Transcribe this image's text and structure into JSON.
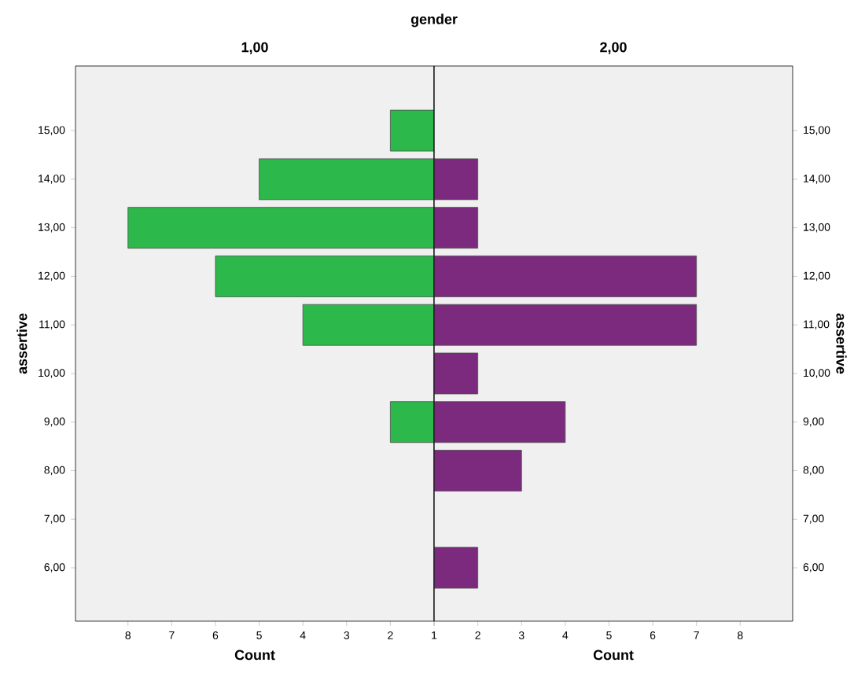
{
  "chart_data": [
    {
      "type": "bar",
      "orientation": "horizontal",
      "title": "1,00",
      "xlabel": "Count",
      "ylabel": "assertive",
      "annotations": [
        "gender"
      ],
      "categories": [
        "15,00",
        "14,00",
        "13,00",
        "12,00",
        "11,00",
        "10,00",
        "9,00",
        "8,00",
        "7,00",
        "6,00"
      ],
      "values": [
        2,
        5,
        8,
        6,
        4,
        null,
        2,
        null,
        null,
        null
      ],
      "color": "#2db84b",
      "xlim": [
        9.2,
        1
      ],
      "xticks": [
        8,
        7,
        6,
        5,
        4,
        3,
        2,
        {
          "value": 1,
          "label": null
        }
      ],
      "grid": false
    },
    {
      "type": "bar",
      "orientation": "horizontal",
      "title": "2,00",
      "xlabel": "Count",
      "ylabel": "assertive",
      "categories": [
        "15,00",
        "14,00",
        "13,00",
        "12,00",
        "11,00",
        "10,00",
        "9,00",
        "8,00",
        "7,00",
        "6,00"
      ],
      "values": [
        null,
        2,
        2,
        7,
        7,
        2,
        4,
        3,
        null,
        2
      ],
      "color": "#7b2a7e",
      "xlim": [
        1,
        9.2
      ],
      "xticks": [
        1,
        2,
        3,
        4,
        5,
        6,
        7,
        8
      ],
      "grid": false
    }
  ]
}
